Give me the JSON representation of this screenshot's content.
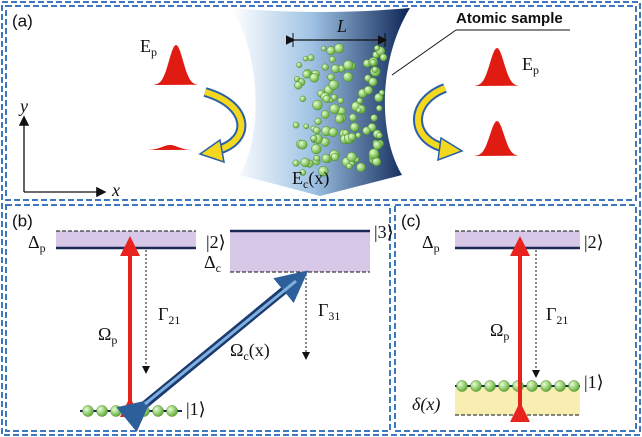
{
  "panel_a": {
    "label": "(a)",
    "length_label": "L",
    "sample_label": "Atomic sample",
    "probe_in": {
      "main": "E",
      "sub": "p"
    },
    "probe_out": {
      "main": "E",
      "sub": "p"
    },
    "axis_y": "y",
    "axis_x": "x",
    "control": {
      "main": "E",
      "sub": "c",
      "arg": "(x)"
    }
  },
  "panel_b": {
    "label": "(b)",
    "delta_p": {
      "main": "Δ",
      "sub": "p"
    },
    "state2": "|2⟩",
    "delta_c": {
      "main": "Δ",
      "sub": "c"
    },
    "state3": "|3⟩",
    "gamma21": {
      "main": "Γ",
      "sub": "21"
    },
    "gamma31": {
      "main": "Γ",
      "sub": "31"
    },
    "omega_p": {
      "main": "Ω",
      "sub": "p"
    },
    "omega_c": {
      "main": "Ω",
      "sub": "c",
      "arg": "(x)"
    },
    "state1": "|1⟩"
  },
  "panel_c": {
    "label": "(c)",
    "delta_p": {
      "main": "Δ",
      "sub": "p"
    },
    "state2": "|2⟩",
    "gamma21": {
      "main": "Γ",
      "sub": "21"
    },
    "omega_p": {
      "main": "Ω",
      "sub": "p"
    },
    "state1": "|1⟩",
    "detuning": "δ(x)"
  }
}
